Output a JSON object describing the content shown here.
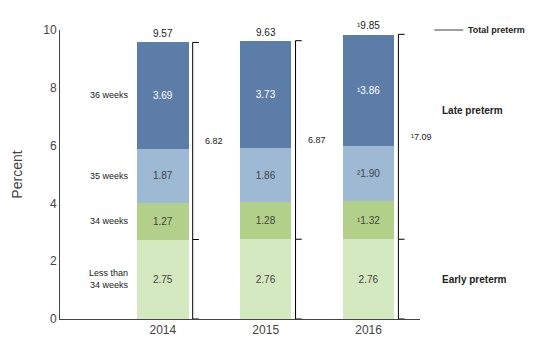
{
  "chart_data": {
    "type": "bar",
    "stacked": true,
    "data_labels": true,
    "grid": false,
    "ylabel": "Percent",
    "categories": [
      "2014",
      "2015",
      "2016"
    ],
    "series": [
      {
        "name": "Less than\n34 weeks",
        "color": "#d4e9bf",
        "values": [
          2.75,
          2.76,
          2.76
        ],
        "value_labels": [
          "2.75",
          "2.76",
          "2.76"
        ]
      },
      {
        "name": "34 weeks",
        "color": "#b3d08a",
        "values": [
          1.27,
          1.28,
          1.32
        ],
        "value_labels": [
          "1.27",
          "1.28",
          "¹1.32"
        ]
      },
      {
        "name": "35 weeks",
        "color": "#9db9d4",
        "values": [
          1.87,
          1.86,
          1.9
        ],
        "value_labels": [
          "1.87",
          "1.86",
          "²1.90"
        ]
      },
      {
        "name": "36 weeks",
        "color": "#5c7da8",
        "values": [
          3.69,
          3.73,
          3.86
        ],
        "value_labels": [
          "3.69",
          "3.73",
          "¹3.86"
        ]
      }
    ],
    "totals": {
      "name": "Total preterm",
      "values": [
        9.57,
        9.63,
        9.85
      ],
      "value_labels": [
        "9.57",
        "9.63",
        "¹9.85"
      ]
    },
    "late_preterm": {
      "name": "Late preterm",
      "values": [
        6.82,
        6.87,
        7.09
      ],
      "value_labels": [
        "6.82",
        "6.87",
        "¹7.09"
      ]
    },
    "early_preterm": {
      "name": "Early preterm"
    },
    "ylim": [
      0,
      10
    ],
    "yticks": [
      0,
      2,
      4,
      6,
      8,
      10
    ]
  }
}
